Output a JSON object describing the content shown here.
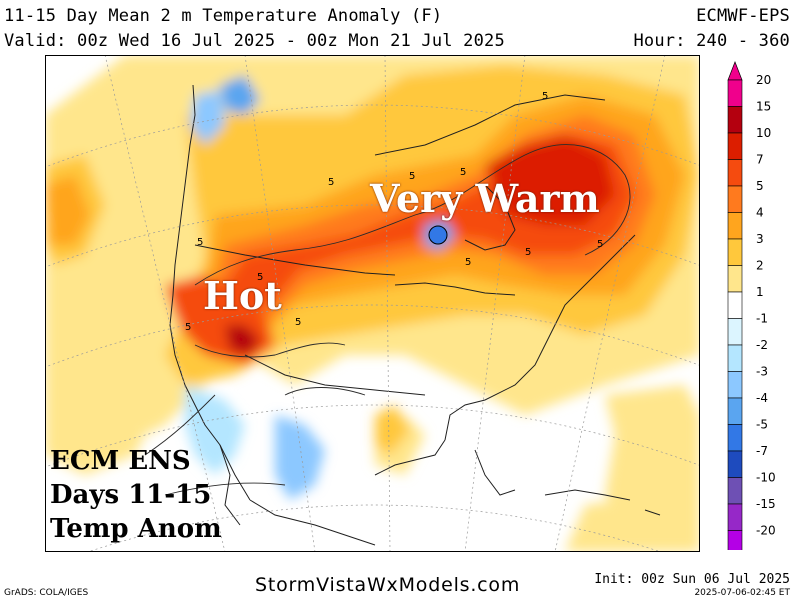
{
  "header": {
    "title_left": "11-15 Day Mean 2 m Temperature Anomaly (F)",
    "title_right": "ECMWF-EPS",
    "valid_line": "Valid: 00z Wed 16 Jul 2025 - 00z Mon 21 Jul 2025",
    "hour_line": "Hour: 240 - 360"
  },
  "map": {
    "label_very_warm": "Very Warm",
    "label_hot": "Hot",
    "ecm_line1": "ECM ENS",
    "ecm_line2": "Days 11-15",
    "ecm_line3": "Temp Anom",
    "contour_labels": [
      "5",
      "5",
      "5",
      "5",
      "5",
      "5",
      "5",
      "5",
      "5",
      "5",
      "5"
    ]
  },
  "legend": {
    "levels": [
      "20",
      "15",
      "10",
      "7",
      "5",
      "4",
      "3",
      "2",
      "1",
      "-1",
      "-2",
      "-3",
      "-4",
      "-5",
      "-7",
      "-10",
      "-15",
      "-20"
    ],
    "colors": [
      "#f0008c",
      "#b4000f",
      "#dc1e00",
      "#f54b0f",
      "#ff7a1e",
      "#ffa51e",
      "#ffc83c",
      "#ffe68c",
      "#ffffff",
      "#dcf5ff",
      "#b4e6ff",
      "#8cc8ff",
      "#5aa5f0",
      "#3278e6",
      "#1e4bbe",
      "#6e50b4",
      "#9628c8",
      "#b400e6"
    ]
  },
  "footer": {
    "grads": "GrADS: COLA/IGES",
    "brand": "StormVistaWxModels.com",
    "init": "Init: 00z Sun 06 Jul 2025",
    "timestamp": "2025-07-06-02:45 ET"
  }
}
